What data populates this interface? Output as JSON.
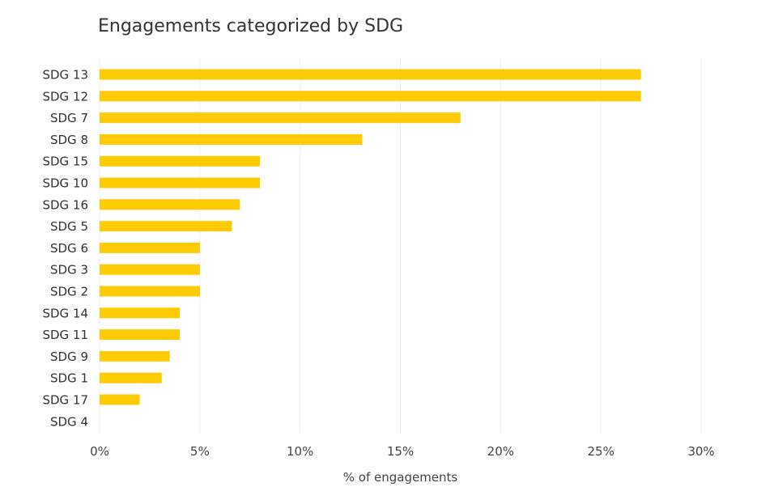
{
  "chart_data": {
    "type": "bar",
    "orientation": "horizontal",
    "title": "Engagements categorized by SDG",
    "xlabel": "% of engagements",
    "ylabel": "",
    "xlim": [
      0,
      30
    ],
    "x_ticks": [
      0,
      5,
      10,
      15,
      20,
      25,
      30
    ],
    "x_tick_labels": [
      "0%",
      "5%",
      "10%",
      "15%",
      "20%",
      "25%",
      "30%"
    ],
    "categories": [
      "SDG 13",
      "SDG 12",
      "SDG 7",
      "SDG 8",
      "SDG 15",
      "SDG 10",
      "SDG 16",
      "SDG 5",
      "SDG 6",
      "SDG 3",
      "SDG 2",
      "SDG 14",
      "SDG 11",
      "SDG 9",
      "SDG 1",
      "SDG 17",
      "SDG 4"
    ],
    "values": [
      27,
      27,
      18,
      13.1,
      8,
      8,
      7,
      6.6,
      5,
      5,
      5,
      4,
      4,
      3.5,
      3.1,
      2,
      0
    ],
    "grid": true,
    "legend": "none",
    "bar_color": "#FFCB05",
    "grid_color": "#eeeeee"
  }
}
